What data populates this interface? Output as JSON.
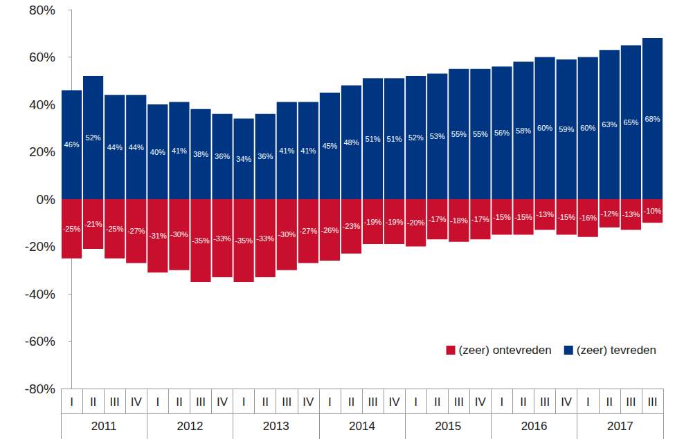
{
  "chart_data": {
    "type": "bar",
    "categories": [
      "I",
      "II",
      "III",
      "IV",
      "I",
      "II",
      "III",
      "IV",
      "I",
      "II",
      "III",
      "IV",
      "I",
      "II",
      "III",
      "IV",
      "I",
      "II",
      "III",
      "IV",
      "I",
      "II",
      "III",
      "IV",
      "I",
      "II",
      "III",
      "III"
    ],
    "category_groups": [
      {
        "label": "2011",
        "span": 4
      },
      {
        "label": "2012",
        "span": 4
      },
      {
        "label": "2013",
        "span": 4
      },
      {
        "label": "2014",
        "span": 4
      },
      {
        "label": "2015",
        "span": 4
      },
      {
        "label": "2016",
        "span": 4
      },
      {
        "label": "2017",
        "span": 4
      }
    ],
    "series": [
      {
        "name": "(zeer) ontevreden",
        "color": "#c8102e",
        "values": [
          -25,
          -21,
          -25,
          -27,
          -31,
          -30,
          -35,
          -33,
          -35,
          -33,
          -30,
          -27,
          -26,
          -23,
          -19,
          -19,
          -20,
          -17,
          -18,
          -17,
          -15,
          -15,
          -13,
          -15,
          -16,
          -12,
          -13,
          -10
        ],
        "value_labels": [
          "-25%",
          "-21%",
          "-25%",
          "-27%",
          "-31%",
          "-30%",
          "-35%",
          "-33%",
          "-35%",
          "-33%",
          "-30%",
          "-27%",
          "-26%",
          "-23%",
          "-19%",
          "-19%",
          "-20%",
          "-17%",
          "-18%",
          "-17%",
          "-15%",
          "-15%",
          "-13%",
          "-15%",
          "-16%",
          "-12%",
          "-13%",
          "-10%"
        ]
      },
      {
        "name": "(zeer) tevreden",
        "color": "#003581",
        "values": [
          46,
          52,
          44,
          44,
          40,
          41,
          38,
          36,
          34,
          36,
          41,
          41,
          45,
          48,
          51,
          51,
          52,
          53,
          55,
          55,
          56,
          58,
          60,
          59,
          60,
          63,
          65,
          68
        ],
        "value_labels": [
          "46%",
          "52%",
          "44%",
          "44%",
          "40%",
          "41%",
          "38%",
          "36%",
          "34%",
          "36%",
          "41%",
          "41%",
          "45%",
          "48%",
          "51%",
          "51%",
          "52%",
          "53%",
          "55%",
          "55%",
          "56%",
          "58%",
          "60%",
          "59%",
          "60%",
          "63%",
          "65%",
          "68%"
        ]
      }
    ],
    "ylim": [
      -80,
      80
    ],
    "yticks": [
      {
        "value": -80,
        "label": "-80%"
      },
      {
        "value": -60,
        "label": "-60%"
      },
      {
        "value": -40,
        "label": "-40%"
      },
      {
        "value": -20,
        "label": "-20%"
      },
      {
        "value": 0,
        "label": "0%"
      },
      {
        "value": 20,
        "label": "20%"
      },
      {
        "value": 40,
        "label": "40%"
      },
      {
        "value": 60,
        "label": "60%"
      },
      {
        "value": 80,
        "label": "80%"
      }
    ],
    "grid": false,
    "legend": "lower right",
    "data_labels": true
  }
}
